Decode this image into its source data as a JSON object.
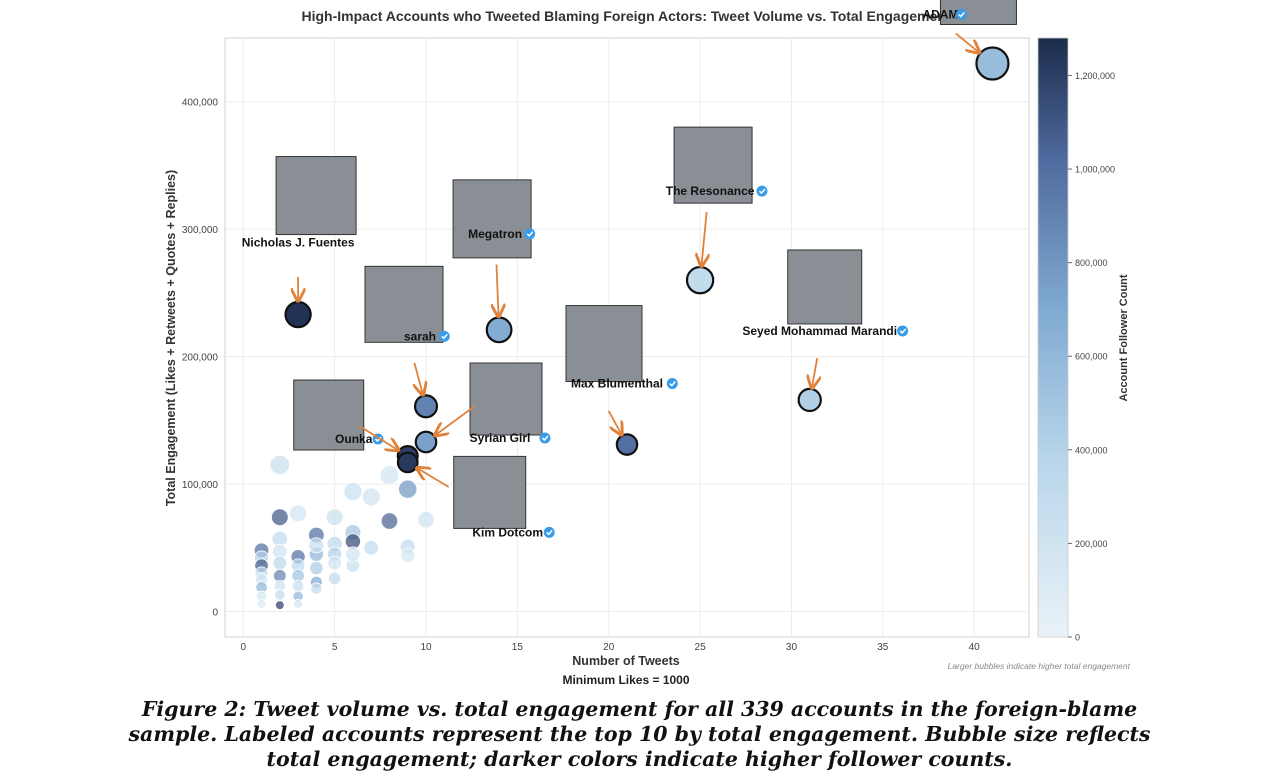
{
  "chart_data": {
    "type": "scatter",
    "title": "High-Impact Accounts who Tweeted Blaming Foreign Actors: Tweet Volume vs. Total Engagement",
    "xlabel": "Number of Tweets",
    "sublabel": "Minimum Likes = 1000",
    "ylabel": "Total Engagement (Likes + Retweets + Quotes + Replies)",
    "colorbar_label": "Account Follower Count",
    "size_note": "Larger bubbles indicate higher total engagement",
    "xlim": [
      -1,
      43
    ],
    "ylim": [
      -20000,
      450000
    ],
    "x_ticks": [
      0,
      5,
      10,
      15,
      20,
      25,
      30,
      35,
      40
    ],
    "y_ticks": [
      0,
      100000,
      200000,
      300000,
      400000
    ],
    "y_tick_labels": [
      "0",
      "100,000",
      "200,000",
      "300,000",
      "400,000"
    ],
    "colorbar_range": [
      0,
      1280000
    ],
    "colorbar_ticks": [
      0,
      200000,
      400000,
      600000,
      800000,
      1000000,
      1200000
    ],
    "colorbar_tick_labels": [
      "0",
      "200,000",
      "400,000",
      "600,000",
      "800,000",
      "1,000,000",
      "1,200,000"
    ],
    "grid": true,
    "labeled_points": [
      {
        "name": "ADAM",
        "verified": true,
        "x": 41,
        "y": 430000,
        "followers": 560000
      },
      {
        "name": "The Resonance",
        "verified": true,
        "x": 25,
        "y": 260000,
        "followers": 300000
      },
      {
        "name": "Seyed Mohammad Marandi",
        "verified": true,
        "x": 31,
        "y": 166000,
        "followers": 420000
      },
      {
        "name": "Nicholas J. Fuentes",
        "verified": false,
        "x": 3,
        "y": 233000,
        "followers": 1250000
      },
      {
        "name": "Megatron",
        "verified": true,
        "x": 14,
        "y": 221000,
        "followers": 680000
      },
      {
        "name": "sarah",
        "verified": true,
        "x": 10,
        "y": 161000,
        "followers": 900000
      },
      {
        "name": "Max Blumenthal",
        "verified": true,
        "x": 21,
        "y": 131000,
        "followers": 1000000
      },
      {
        "name": "Syrian Girl",
        "verified": true,
        "x": 10,
        "y": 133000,
        "followers": 750000
      },
      {
        "name": "Ounka",
        "verified": true,
        "x": 9,
        "y": 122000,
        "followers": 1200000
      },
      {
        "name": "Kim Dotcom",
        "verified": true,
        "x": 9,
        "y": 117000,
        "followers": 1220000
      }
    ],
    "other_points": [
      {
        "x": 2,
        "y": 115000,
        "followers": 250000
      },
      {
        "x": 3,
        "y": 77000,
        "followers": 180000
      },
      {
        "x": 2,
        "y": 74000,
        "followers": 1100000
      },
      {
        "x": 5,
        "y": 74000,
        "followers": 240000
      },
      {
        "x": 6,
        "y": 94000,
        "followers": 230000
      },
      {
        "x": 7,
        "y": 90000,
        "followers": 200000
      },
      {
        "x": 8,
        "y": 107000,
        "followers": 180000
      },
      {
        "x": 9,
        "y": 96000,
        "followers": 800000
      },
      {
        "x": 8,
        "y": 71000,
        "followers": 1050000
      },
      {
        "x": 10,
        "y": 72000,
        "followers": 200000
      },
      {
        "x": 4,
        "y": 60000,
        "followers": 1000000
      },
      {
        "x": 6,
        "y": 62000,
        "followers": 500000
      },
      {
        "x": 6,
        "y": 55000,
        "followers": 1150000
      },
      {
        "x": 5,
        "y": 53000,
        "followers": 350000
      },
      {
        "x": 7,
        "y": 50000,
        "followers": 300000
      },
      {
        "x": 9,
        "y": 51000,
        "followers": 300000
      },
      {
        "x": 9,
        "y": 44000,
        "followers": 150000
      },
      {
        "x": 6,
        "y": 36000,
        "followers": 250000
      },
      {
        "x": 5,
        "y": 45000,
        "followers": 400000
      },
      {
        "x": 5,
        "y": 26000,
        "followers": 300000
      },
      {
        "x": 4,
        "y": 45000,
        "followers": 600000
      },
      {
        "x": 4,
        "y": 34000,
        "followers": 450000
      },
      {
        "x": 4,
        "y": 23000,
        "followers": 700000
      },
      {
        "x": 4,
        "y": 18000,
        "followers": 300000
      },
      {
        "x": 3,
        "y": 43000,
        "followers": 1000000
      },
      {
        "x": 3,
        "y": 36000,
        "followers": 350000
      },
      {
        "x": 3,
        "y": 28000,
        "followers": 500000
      },
      {
        "x": 3,
        "y": 20000,
        "followers": 250000
      },
      {
        "x": 3,
        "y": 12000,
        "followers": 600000
      },
      {
        "x": 3,
        "y": 6000,
        "followers": 150000
      },
      {
        "x": 2,
        "y": 57000,
        "followers": 300000
      },
      {
        "x": 2,
        "y": 47000,
        "followers": 200000
      },
      {
        "x": 2,
        "y": 38000,
        "followers": 350000
      },
      {
        "x": 2,
        "y": 28000,
        "followers": 900000
      },
      {
        "x": 2,
        "y": 20000,
        "followers": 200000
      },
      {
        "x": 2,
        "y": 13000,
        "followers": 300000
      },
      {
        "x": 2,
        "y": 5000,
        "followers": 1200000
      },
      {
        "x": 1,
        "y": 48000,
        "followers": 1000000
      },
      {
        "x": 1,
        "y": 42000,
        "followers": 400000
      },
      {
        "x": 1,
        "y": 36000,
        "followers": 1100000
      },
      {
        "x": 1,
        "y": 30000,
        "followers": 300000
      },
      {
        "x": 1,
        "y": 25000,
        "followers": 200000
      },
      {
        "x": 1,
        "y": 19000,
        "followers": 600000
      },
      {
        "x": 1,
        "y": 12000,
        "followers": 150000
      },
      {
        "x": 1,
        "y": 6000,
        "followers": 100000
      },
      {
        "x": 5,
        "y": 38000,
        "followers": 200000
      },
      {
        "x": 4,
        "y": 52000,
        "followers": 250000
      },
      {
        "x": 6,
        "y": 45000,
        "followers": 200000
      }
    ]
  },
  "caption": {
    "lines": [
      "Figure 2: Tweet volume vs. total engagement for all 339 accounts in the foreign-blame",
      "sample. Labeled accounts represent the top 10 by total engagement. Bubble size reflects",
      "total engagement; darker colors indicate higher follower counts."
    ]
  }
}
